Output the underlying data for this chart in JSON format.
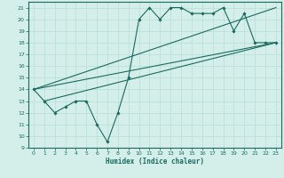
{
  "title": "",
  "xlabel": "Humidex (Indice chaleur)",
  "ylabel": "",
  "bg_color": "#d4eeea",
  "line_color": "#1a6b5e",
  "grid_color": "#b8ddd8",
  "ylim": [
    9,
    21.5
  ],
  "xlim": [
    -0.5,
    23.5
  ],
  "yticks": [
    9,
    10,
    11,
    12,
    13,
    14,
    15,
    16,
    17,
    18,
    19,
    20,
    21
  ],
  "xticks": [
    0,
    1,
    2,
    3,
    4,
    5,
    6,
    7,
    8,
    9,
    10,
    11,
    12,
    13,
    14,
    15,
    16,
    17,
    18,
    19,
    20,
    21,
    22,
    23
  ],
  "line1_x": [
    0,
    1,
    2,
    3,
    4,
    5,
    6,
    7,
    8,
    9,
    10,
    11,
    12,
    13,
    14,
    15,
    16,
    17,
    18,
    19,
    20,
    21,
    22,
    23
  ],
  "line1_y": [
    14,
    13,
    12,
    12.5,
    13,
    13,
    11,
    9.5,
    12,
    15,
    20,
    21,
    20,
    21,
    21,
    20.5,
    20.5,
    20.5,
    21,
    19,
    20.5,
    18,
    18,
    18
  ],
  "line2_x": [
    0,
    23
  ],
  "line2_y": [
    14,
    21
  ],
  "line3_x": [
    1,
    23
  ],
  "line3_y": [
    13,
    18
  ],
  "line4_x": [
    0,
    23
  ],
  "line4_y": [
    14,
    18
  ]
}
